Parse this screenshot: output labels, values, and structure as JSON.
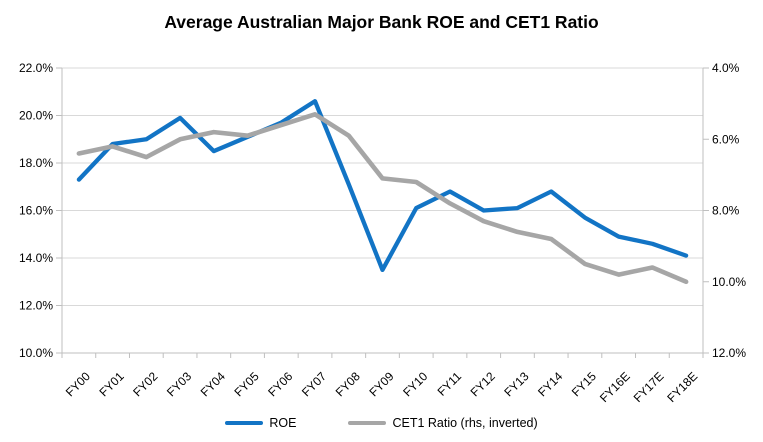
{
  "chart_data": {
    "type": "line",
    "title": "Average Australian Major Bank ROE and CET1 Ratio",
    "categories": [
      "FY00",
      "FY01",
      "FY02",
      "FY03",
      "FY04",
      "FY05",
      "FY06",
      "FY07",
      "FY08",
      "FY09",
      "FY10",
      "FY11",
      "FY12",
      "FY13",
      "FY14",
      "FY15",
      "FY16E",
      "FY17E",
      "FY18E"
    ],
    "series": [
      {
        "name": "ROE",
        "axis": "left",
        "color": "#1274C5",
        "values": [
          17.3,
          18.8,
          19.0,
          19.9,
          18.5,
          19.1,
          19.7,
          20.6,
          17.1,
          13.5,
          16.1,
          16.8,
          16.0,
          16.1,
          16.8,
          15.7,
          14.9,
          14.6,
          14.1
        ]
      },
      {
        "name": "CET1 Ratio (rhs, inverted)",
        "axis": "right",
        "color": "#A6A6A6",
        "values": [
          6.4,
          6.2,
          6.5,
          6.0,
          5.8,
          5.9,
          5.6,
          5.3,
          5.9,
          7.1,
          7.2,
          7.8,
          8.3,
          8.6,
          8.8,
          9.5,
          9.8,
          9.6,
          10.0
        ]
      }
    ],
    "left_axis": {
      "min": 10,
      "max": 22,
      "step": 2,
      "tick_labels": [
        "22.0%",
        "20.0%",
        "18.0%",
        "16.0%",
        "14.0%",
        "12.0%",
        "10.0%"
      ]
    },
    "right_axis": {
      "min": 4,
      "max": 12,
      "step": 2,
      "inverted": true,
      "tick_labels": [
        "4.0%",
        "6.0%",
        "8.0%",
        "10.0%",
        "12.0%"
      ]
    },
    "grid": true,
    "legend_position": "bottom",
    "colors": {
      "gridline": "#D9D9D9",
      "axis_line": "#BFBFBF",
      "tick": "#BFBFBF",
      "text": "#000000"
    }
  }
}
